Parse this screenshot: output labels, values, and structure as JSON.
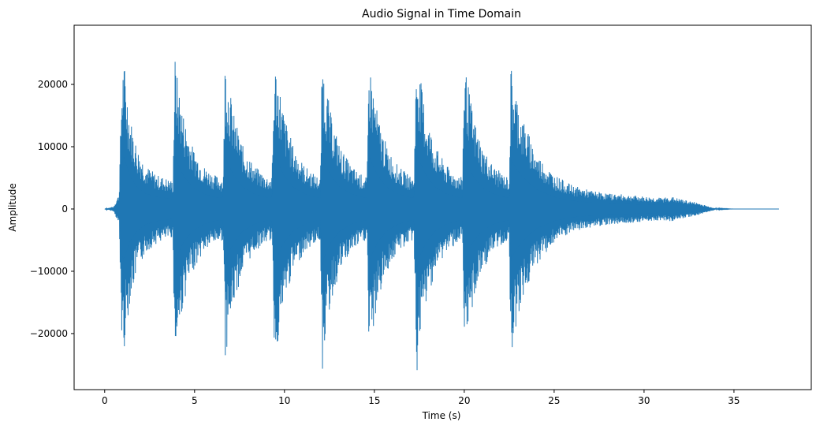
{
  "chart_data": {
    "type": "line",
    "title": "Audio Signal in Time Domain",
    "xlabel": "Time (s)",
    "ylabel": "Amplitude",
    "xlim": [
      -1.7,
      39.3
    ],
    "ylim": [
      -29000,
      29500
    ],
    "xticks": [
      0,
      5,
      10,
      15,
      20,
      25,
      30,
      35
    ],
    "xtick_labels": [
      "0",
      "5",
      "10",
      "15",
      "20",
      "25",
      "30",
      "35"
    ],
    "yticks": [
      -20000,
      -10000,
      0,
      10000,
      20000
    ],
    "ytick_labels": [
      "−20000",
      "−10000",
      "0",
      "10000",
      "20000"
    ],
    "grid": false,
    "line_color": "#1f77b4",
    "series": [
      {
        "name": "",
        "envelope": {
          "time": [
            0.0,
            0.5,
            0.8,
            0.95,
            1.05,
            1.15,
            1.4,
            1.8,
            2.3,
            2.9,
            3.4,
            3.8,
            3.9,
            4.0,
            4.4,
            4.9,
            5.5,
            6.1,
            6.6,
            6.7,
            6.8,
            7.2,
            7.7,
            8.3,
            8.9,
            9.3,
            9.45,
            9.6,
            10.0,
            10.5,
            11.1,
            11.7,
            12.0,
            12.1,
            12.2,
            12.6,
            13.1,
            13.7,
            14.3,
            14.6,
            14.7,
            14.8,
            15.2,
            15.7,
            16.3,
            16.9,
            17.2,
            17.35,
            17.5,
            17.9,
            18.4,
            19.0,
            19.6,
            19.9,
            20.0,
            20.1,
            20.5,
            21.0,
            21.6,
            22.2,
            22.5,
            22.6,
            22.7,
            23.2,
            24.0,
            25.0,
            26.0,
            27.0,
            28.0,
            29.0,
            30.0,
            31.0,
            31.5,
            32.0,
            32.5,
            33.0,
            33.5,
            34.0,
            35.0,
            36.0,
            37.5
          ],
          "upper": [
            0,
            400,
            2500,
            21000,
            24300,
            22000,
            15000,
            10000,
            7000,
            5500,
            5000,
            4500,
            25000,
            22000,
            15000,
            10000,
            7000,
            5500,
            5000,
            25500,
            22000,
            15000,
            10000,
            7000,
            5500,
            5000,
            24000,
            22000,
            15000,
            10000,
            7000,
            5500,
            5000,
            25700,
            22000,
            15000,
            10000,
            7000,
            5500,
            5000,
            25000,
            22000,
            15000,
            10000,
            7000,
            5500,
            5000,
            25500,
            22000,
            15000,
            10000,
            7000,
            5500,
            5000,
            24500,
            22000,
            15000,
            10000,
            7000,
            5500,
            5000,
            23500,
            21000,
            15000,
            9000,
            5500,
            3800,
            3000,
            2500,
            2300,
            2000,
            1800,
            2000,
            1600,
            1300,
            1000,
            500,
            100,
            0,
            0,
            0
          ],
          "lower": [
            0,
            -400,
            -2500,
            -21000,
            -23500,
            -21000,
            -15000,
            -10000,
            -7000,
            -5500,
            -5000,
            -4500,
            -25800,
            -22000,
            -15000,
            -10000,
            -7000,
            -5500,
            -5000,
            -25200,
            -22000,
            -15000,
            -10000,
            -7000,
            -5500,
            -5000,
            -24500,
            -22000,
            -15000,
            -10000,
            -7000,
            -5500,
            -5000,
            -27300,
            -22000,
            -15000,
            -10000,
            -7000,
            -5500,
            -5000,
            -24500,
            -22000,
            -15000,
            -10000,
            -7000,
            -5500,
            -5000,
            -27300,
            -22000,
            -15000,
            -10000,
            -7000,
            -5500,
            -5000,
            -25000,
            -22000,
            -15000,
            -10000,
            -7000,
            -5500,
            -5000,
            -25000,
            -21000,
            -15000,
            -9000,
            -5500,
            -3800,
            -3000,
            -2500,
            -2300,
            -2000,
            -1800,
            -2000,
            -1600,
            -1300,
            -1000,
            -500,
            -100,
            0,
            0,
            0
          ]
        }
      }
    ]
  }
}
